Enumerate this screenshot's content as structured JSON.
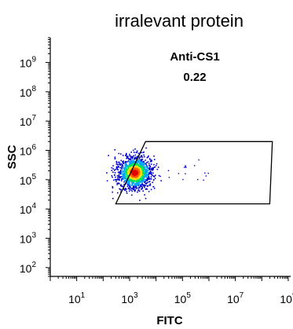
{
  "chart_data": {
    "type": "scatter",
    "subtype": "flow-cytometry-density",
    "title": "irralevant protein",
    "xlabel": "FITC",
    "ylabel": "SSC",
    "x_scale": "log",
    "y_scale": "log",
    "xlim": [
      1,
      1000000000
    ],
    "ylim": [
      50,
      7000000000
    ],
    "x_ticks": [
      {
        "base": "10",
        "exp": "1",
        "value": 10
      },
      {
        "base": "10",
        "exp": "3",
        "value": 1000
      },
      {
        "base": "10",
        "exp": "5",
        "value": 100000
      },
      {
        "base": "10",
        "exp": "7",
        "value": 10000000
      },
      {
        "base": "10",
        "exp": "9",
        "value": 1000000000
      }
    ],
    "y_ticks": [
      {
        "base": "10",
        "exp": "2",
        "value": 100
      },
      {
        "base": "10",
        "exp": "3",
        "value": 1000
      },
      {
        "base": "10",
        "exp": "4",
        "value": 10000
      },
      {
        "base": "10",
        "exp": "5",
        "value": 100000
      },
      {
        "base": "10",
        "exp": "6",
        "value": 1000000
      },
      {
        "base": "10",
        "exp": "7",
        "value": 10000000
      },
      {
        "base": "10",
        "exp": "8",
        "value": 100000000
      },
      {
        "base": "10",
        "exp": "9",
        "value": 1000000000
      }
    ],
    "population": {
      "center_x": 1500,
      "center_y": 180000,
      "spread_x_decades": 0.32,
      "spread_y_decades": 0.28,
      "density_colors": [
        "#0000cc",
        "#00a0ff",
        "#00e060",
        "#ffe000",
        "#ff6000",
        "#e00000"
      ]
    },
    "gate": {
      "name": "Anti-CS1",
      "value": "0.22",
      "vertices": [
        [
          4000,
          2000000
        ],
        [
          250000000,
          2000000
        ],
        [
          200000000,
          15000
        ],
        [
          300,
          15000
        ]
      ]
    },
    "grid": false,
    "legend": "none"
  }
}
